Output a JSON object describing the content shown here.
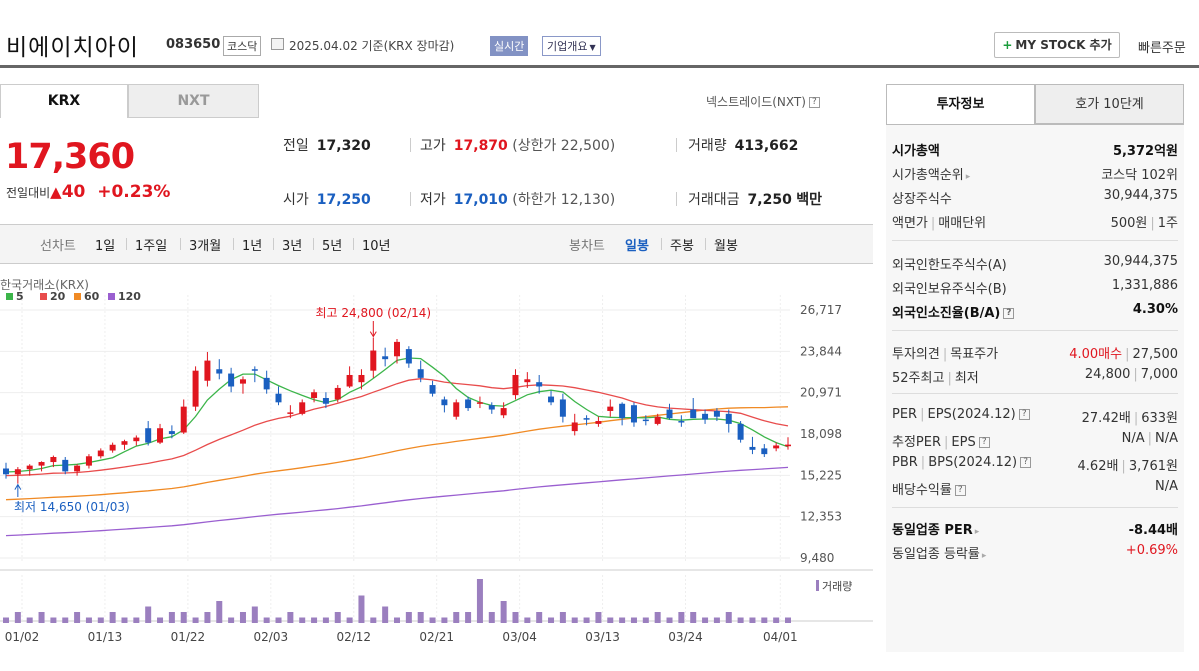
{
  "header": {
    "name": "비에이치아이",
    "code": "083650",
    "market": "코스닥",
    "date_basis": "2025.04.02  기준(KRX 장마감)",
    "realtime": "실시간",
    "company_info": "기업개요",
    "mystock": "MY STOCK 추가",
    "quick_order": "빠른주문"
  },
  "tabs": {
    "krx": "KRX",
    "nxt": "NXT",
    "nxt_link": "넥스트레이드(NXT)"
  },
  "quote": {
    "price": "17,360",
    "change_label": "전일대비",
    "change": "40",
    "change_pct": "+0.23%",
    "prev_label": "전일",
    "prev": "17,320",
    "high_label": "고가",
    "high": "17,870",
    "upper_limit": "(상한가 22,500)",
    "volume_label": "거래량",
    "volume": "413,662",
    "open_label": "시가",
    "open": "17,250",
    "low_label": "저가",
    "low": "17,010",
    "lower_limit": "(하한가 12,130)",
    "amount_label": "거래대금",
    "amount": "7,250",
    "amount_unit": "백만"
  },
  "periods": {
    "line_label": "선차트",
    "line": [
      "1일",
      "1주일",
      "3개월",
      "1년",
      "3년",
      "5년",
      "10년"
    ],
    "candle_label": "봉차트",
    "candle": [
      "일봉",
      "주봉",
      "월봉"
    ]
  },
  "chart_data": {
    "type": "candlestick",
    "source_label": "한국거래소(KRX)",
    "legend": [
      "5",
      "20",
      "60",
      "120"
    ],
    "legend_colors": [
      "#3cb54a",
      "#e84c4c",
      "#f08a24",
      "#9a5fd0"
    ],
    "y_ticks": [
      "26,717",
      "23,844",
      "20,971",
      "18,098",
      "15,225",
      "12,353",
      "9,480"
    ],
    "ylim": [
      9480,
      26717
    ],
    "x_ticks": [
      "01/02",
      "01/13",
      "01/22",
      "02/03",
      "02/12",
      "02/21",
      "03/04",
      "03/13",
      "03/24",
      "04/01"
    ],
    "max_label": "최고 24,800 (02/14)",
    "min_label": "최저 14,650 (01/03)",
    "volume_label": "거래량",
    "candles": [
      [
        15700,
        16100,
        15000,
        15300
      ],
      [
        15300,
        15800,
        14650,
        15650
      ],
      [
        15650,
        16000,
        15200,
        15900
      ],
      [
        15900,
        16200,
        15500,
        16150
      ],
      [
        16150,
        16600,
        15800,
        16500
      ],
      [
        16300,
        16500,
        15300,
        15500
      ],
      [
        15500,
        16000,
        15200,
        15900
      ],
      [
        15900,
        16700,
        15700,
        16550
      ],
      [
        16550,
        17100,
        16400,
        16950
      ],
      [
        16950,
        17500,
        16800,
        17350
      ],
      [
        17350,
        17700,
        17000,
        17600
      ],
      [
        17600,
        18000,
        17300,
        17850
      ],
      [
        18500,
        19000,
        17300,
        17500
      ],
      [
        17500,
        18800,
        17400,
        18500
      ],
      [
        18300,
        18700,
        17800,
        18100
      ],
      [
        18200,
        20500,
        18100,
        20000
      ],
      [
        20000,
        22800,
        19700,
        22500
      ],
      [
        21800,
        23800,
        21400,
        23200
      ],
      [
        22600,
        23300,
        21900,
        22300
      ],
      [
        22300,
        22700,
        21000,
        21400
      ],
      [
        21600,
        22100,
        20900,
        21900
      ],
      [
        22600,
        22800,
        21700,
        22500
      ],
      [
        22000,
        22500,
        20900,
        21200
      ],
      [
        20900,
        21400,
        20100,
        20300
      ],
      [
        19500,
        20100,
        19200,
        19600
      ],
      [
        19500,
        20500,
        19400,
        20300
      ],
      [
        20600,
        21200,
        20300,
        21000
      ],
      [
        20600,
        21000,
        19900,
        20200
      ],
      [
        20500,
        21500,
        20300,
        21300
      ],
      [
        21400,
        22800,
        21300,
        22200
      ],
      [
        21700,
        22600,
        21200,
        22200
      ],
      [
        22500,
        24800,
        22000,
        23900
      ],
      [
        23500,
        24100,
        22800,
        23300
      ],
      [
        23500,
        24700,
        23000,
        24500
      ],
      [
        24000,
        24200,
        22700,
        23000
      ],
      [
        22600,
        23200,
        21700,
        22000
      ],
      [
        21500,
        21800,
        20700,
        20900
      ],
      [
        20500,
        20700,
        19600,
        20100
      ],
      [
        19300,
        20500,
        19100,
        20300
      ],
      [
        20500,
        20700,
        19700,
        19900
      ],
      [
        20300,
        20700,
        19900,
        20300
      ],
      [
        20100,
        20300,
        19500,
        19800
      ],
      [
        19400,
        20300,
        19200,
        19900
      ],
      [
        20800,
        22600,
        20500,
        22200
      ],
      [
        21700,
        22400,
        21300,
        21900
      ],
      [
        21700,
        22200,
        20900,
        21400
      ],
      [
        20700,
        21100,
        20100,
        20300
      ],
      [
        20500,
        20900,
        18900,
        19300
      ],
      [
        18300,
        19500,
        18000,
        18900
      ],
      [
        19200,
        19400,
        18700,
        19100
      ],
      [
        18800,
        19300,
        18600,
        19000
      ],
      [
        19700,
        20500,
        19300,
        20000
      ],
      [
        20200,
        20300,
        18700,
        19200
      ],
      [
        20100,
        20300,
        18600,
        18900
      ],
      [
        19100,
        19400,
        18700,
        19000
      ],
      [
        18800,
        19500,
        18700,
        19300
      ],
      [
        19800,
        20200,
        19100,
        19200
      ],
      [
        19000,
        19400,
        18600,
        18900
      ],
      [
        19800,
        20600,
        19300,
        19200
      ],
      [
        19500,
        19800,
        18800,
        19100
      ],
      [
        19700,
        19900,
        19000,
        19300
      ],
      [
        19500,
        19800,
        18200,
        18800
      ],
      [
        18800,
        19000,
        17500,
        17700
      ],
      [
        17200,
        17900,
        16700,
        17000
      ],
      [
        17100,
        17400,
        16500,
        16700
      ],
      [
        17100,
        17500,
        16900,
        17300
      ],
      [
        17250,
        17870,
        17010,
        17360
      ]
    ],
    "volumes": [
      1,
      2,
      1,
      2,
      1,
      1,
      2,
      1,
      1,
      2,
      1,
      1,
      3,
      1,
      2,
      2,
      1,
      2,
      4,
      1,
      2,
      3,
      1,
      1,
      2,
      1,
      1,
      1,
      2,
      1,
      5,
      1,
      3,
      1,
      2,
      2,
      1,
      1,
      2,
      2,
      8,
      2,
      4,
      2,
      1,
      2,
      1,
      2,
      1,
      1,
      2,
      1,
      1,
      1,
      1,
      2,
      1,
      2,
      2,
      1,
      1,
      2,
      1,
      1,
      1,
      1,
      1
    ],
    "ma5_color": "#3cb54a",
    "ma20_color": "#e84c4c",
    "ma60_color": "#f08a24",
    "ma120_color": "#9a5fd0",
    "up_color": "#e0161f",
    "down_color": "#1a5fc0"
  },
  "right_panel": {
    "tab_info": "투자정보",
    "tab_orderbook": "호가 10단계",
    "market_cap_label": "시가총액",
    "market_cap": "5,372억원",
    "market_cap_rank_label": "시가총액순위",
    "market_cap_rank": "코스닥 102위",
    "shares_label": "상장주식수",
    "shares": "30,944,375",
    "face_label": "액면가",
    "trade_unit_label": "매매단위",
    "face_value": "500원",
    "trade_unit": "1주",
    "foreign_limit_label": "외국인한도주식수(A)",
    "foreign_limit": "30,944,375",
    "foreign_hold_label": "외국인보유주식수(B)",
    "foreign_hold": "1,331,886",
    "foreign_ratio_label": "외국인소진율(B/A)",
    "foreign_ratio": "4.30%",
    "opinion_label": "투자의견",
    "target_label": "목표주가",
    "opinion": "4.00매수",
    "target": "27,500",
    "week52_label": "52주최고",
    "week52_low_label": "최저",
    "week52_high": "24,800",
    "week52_low": "7,000",
    "per_label": "PER",
    "eps_label": "EPS(2024.12)",
    "per": "27.42배",
    "eps": "633원",
    "est_per_label": "추정PER",
    "est_eps_label": "EPS",
    "est_per": "N/A",
    "est_eps": "N/A",
    "pbr_label": "PBR",
    "bps_label": "BPS(2024.12)",
    "pbr": "4.62배",
    "bps": "3,761원",
    "div_label": "배당수익률",
    "div": "N/A",
    "ind_per_label": "동일업종 PER",
    "ind_per": "-8.44배",
    "ind_rate_label": "동일업종 등락률",
    "ind_rate": "+0.69%"
  }
}
